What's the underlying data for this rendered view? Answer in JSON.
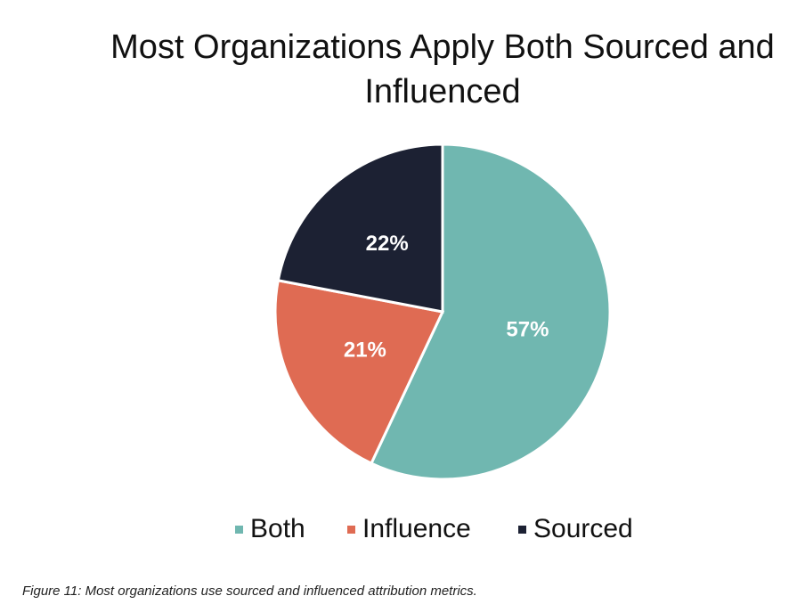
{
  "chart_data": {
    "type": "pie",
    "title": "Most Organizations Apply Both Sourced and Influenced",
    "categories": [
      "Both",
      "Influence",
      "Sourced"
    ],
    "values": [
      57,
      21,
      22
    ],
    "value_labels": [
      "57%",
      "21%",
      "22%"
    ],
    "colors": [
      "#70b7b0",
      "#df6b53",
      "#1c2133"
    ],
    "legend": "bottom",
    "caption": "Figure 11: Most organizations use sourced and influenced attribution metrics."
  }
}
